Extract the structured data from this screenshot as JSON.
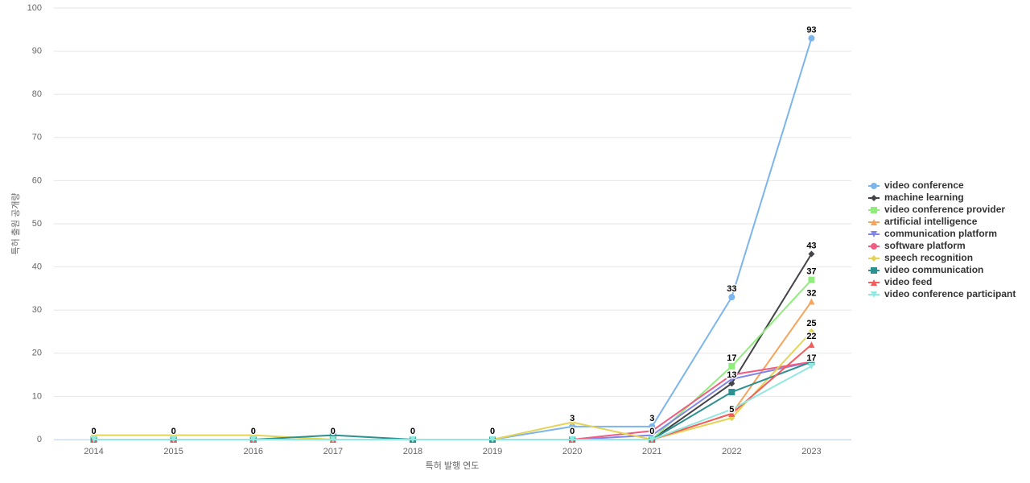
{
  "chart_data": {
    "type": "line",
    "y_label": "특허 출원 공개량",
    "x_label": "특허 발행 연도",
    "categories": [
      "2014",
      "2015",
      "2016",
      "2017",
      "2018",
      "2019",
      "2020",
      "2021",
      "2022",
      "2023"
    ],
    "ylim": [
      0,
      100
    ],
    "yticks": [
      0,
      10,
      20,
      30,
      40,
      50,
      60,
      70,
      80,
      90,
      100
    ],
    "grid": true,
    "legend": "right",
    "series": [
      {
        "name": "video conference",
        "color": "#7cb5ec",
        "symbol": "circle",
        "values": [
          0,
          0,
          0,
          0,
          0,
          0,
          3,
          3,
          33,
          93
        ],
        "value_labels": [
          "0",
          "0",
          "0",
          "0",
          "0",
          "0",
          "3",
          "3",
          "33",
          "93"
        ]
      },
      {
        "name": "machine learning",
        "color": "#434348",
        "symbol": "diamond",
        "values": [
          null,
          null,
          null,
          null,
          null,
          null,
          0,
          0,
          13,
          43
        ],
        "value_labels": [
          null,
          null,
          null,
          null,
          null,
          null,
          "0",
          "0",
          "13",
          "43"
        ]
      },
      {
        "name": "video conference provider",
        "color": "#90ed7d",
        "symbol": "square",
        "values": [
          0,
          0,
          0,
          0,
          0,
          0,
          0,
          0,
          17,
          37
        ],
        "value_labels": [
          null,
          null,
          null,
          null,
          null,
          null,
          null,
          null,
          "17",
          "37"
        ]
      },
      {
        "name": "artificial intelligence",
        "color": "#f7a35c",
        "symbol": "triangle",
        "values": [
          null,
          null,
          null,
          null,
          null,
          null,
          null,
          0,
          6,
          32
        ],
        "value_labels": [
          null,
          null,
          null,
          null,
          null,
          null,
          null,
          null,
          null,
          "32"
        ]
      },
      {
        "name": "communication platform",
        "color": "#8085e9",
        "symbol": "triangle-down",
        "values": [
          null,
          null,
          null,
          null,
          null,
          null,
          0,
          1,
          14,
          18
        ]
      },
      {
        "name": "software platform",
        "color": "#f15c80",
        "symbol": "circle",
        "values": [
          null,
          null,
          null,
          null,
          null,
          null,
          0,
          2,
          15,
          18
        ]
      },
      {
        "name": "speech recognition",
        "color": "#e4d354",
        "symbol": "diamond",
        "values": [
          1,
          1,
          1,
          0,
          0,
          0,
          4,
          0,
          5,
          25
        ],
        "value_labels": [
          null,
          null,
          null,
          null,
          null,
          null,
          null,
          null,
          "5",
          "25"
        ]
      },
      {
        "name": "video communication",
        "color": "#2b908f",
        "symbol": "square",
        "values": [
          0,
          0,
          0,
          1,
          0,
          0,
          0,
          0,
          11,
          18
        ]
      },
      {
        "name": "video feed",
        "color": "#f45b5b",
        "symbol": "triangle",
        "values": [
          0,
          0,
          0,
          0,
          null,
          null,
          0,
          0,
          6,
          22
        ],
        "value_labels": [
          null,
          null,
          null,
          null,
          null,
          null,
          null,
          null,
          null,
          "22"
        ]
      },
      {
        "name": "video conference participant",
        "color": "#91e8e1",
        "symbol": "triangle-down",
        "values": [
          0,
          0,
          0,
          0,
          0,
          0,
          0,
          0,
          7,
          17
        ],
        "value_labels": [
          null,
          null,
          null,
          null,
          null,
          null,
          null,
          null,
          null,
          "17"
        ]
      }
    ]
  }
}
